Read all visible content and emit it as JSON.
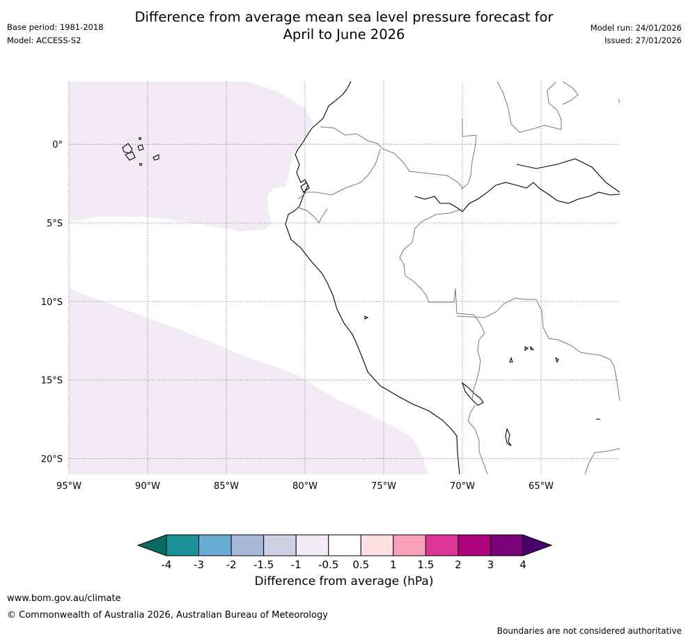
{
  "header": {
    "title_line1": "Difference from average mean sea level pressure forecast for",
    "title_line2": "April to June 2026",
    "base_period": "Base period: 1981-2018",
    "model": "Model: ACCESS-S2",
    "model_run": "Model run: 24/01/2026",
    "issued": "Issued: 27/01/2026"
  },
  "chart_data": {
    "type": "heatmap",
    "title": "Difference from average mean sea level pressure forecast for April to June 2026",
    "projection": "PlateCarree",
    "xlim": [
      -95,
      -60
    ],
    "ylim": [
      -21,
      4
    ],
    "x_ticks": [
      {
        "value": -95,
        "label": "95°W"
      },
      {
        "value": -90,
        "label": "90°W"
      },
      {
        "value": -85,
        "label": "85°W"
      },
      {
        "value": -80,
        "label": "80°W"
      },
      {
        "value": -75,
        "label": "75°W"
      },
      {
        "value": -70,
        "label": "70°W"
      },
      {
        "value": -65,
        "label": "65°W"
      }
    ],
    "y_ticks": [
      {
        "value": 0,
        "label": "0°"
      },
      {
        "value": -5,
        "label": "5°S"
      },
      {
        "value": -10,
        "label": "10°S"
      },
      {
        "value": -15,
        "label": "15°S"
      },
      {
        "value": -20,
        "label": "20°S"
      }
    ],
    "grid": true,
    "anomaly_regions": [
      {
        "category": "-1 to -0.5",
        "color": "#f2eaf4",
        "area": "Pacific Ocean north of about 5°S, west of the Ecuador coast"
      },
      {
        "category": "-1 to -0.5",
        "color": "#f2eaf4",
        "area": "Southeast Pacific south of about 9°S, west of the Peru coast"
      },
      {
        "category": "-0.5 to 0.5",
        "color": "#ffffff",
        "area": "Remainder of the map including the South American continent"
      }
    ],
    "colorbar": {
      "label": "Difference from average (hPa)",
      "extend": "both",
      "bounds": [
        -4,
        -3,
        -2,
        -1.5,
        -1,
        -0.5,
        0.5,
        1,
        1.5,
        2,
        3,
        4
      ],
      "tick_labels": [
        "-4",
        "-3",
        "-2",
        "-1.5",
        "-1",
        "-0.5",
        "0.5",
        "1",
        "1.5",
        "2",
        "3",
        "4"
      ],
      "colors": [
        "#1a9196",
        "#6aabd2",
        "#a7b9db",
        "#cfd1e5",
        "#f2eaf4",
        "#ffffff",
        "#fde0df",
        "#f9a0bb",
        "#dd3497",
        "#ae017e",
        "#7a0177"
      ],
      "under_color": "#076b64",
      "over_color": "#49006a"
    }
  },
  "footer": {
    "url": "www.bom.gov.au/climate",
    "copyright": "© Commonwealth of Australia 2026, Australian Bureau of Meteorology",
    "disclaimer": "Boundaries are not considered authoritative"
  }
}
